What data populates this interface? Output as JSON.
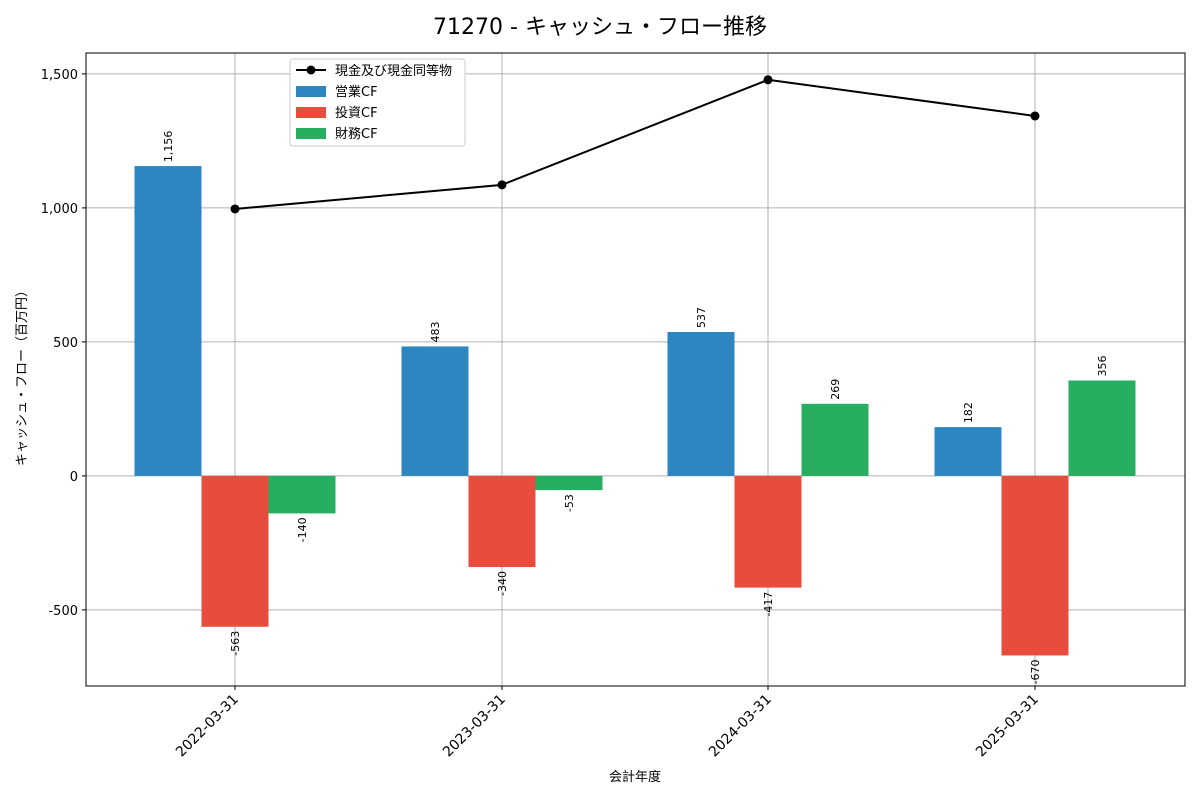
{
  "chart_data": {
    "type": "bar",
    "title": "71270 - キャッシュ・フロー推移",
    "xlabel": "会計年度",
    "ylabel": "キャッシュ・フロー（百万円）",
    "categories": [
      "2022-03-31",
      "2023-03-31",
      "2024-03-31",
      "2025-03-31"
    ],
    "series": [
      {
        "name": "営業CF",
        "color": "#2e86c1",
        "values": [
          1156,
          483,
          537,
          182
        ],
        "labels": [
          "1,156",
          "483",
          "537",
          "182"
        ]
      },
      {
        "name": "投資CF",
        "color": "#e74c3c",
        "values": [
          -563,
          -340,
          -417,
          -670
        ],
        "labels": [
          "-563",
          "-340",
          "-417",
          "-670"
        ]
      },
      {
        "name": "財務CF",
        "color": "#27ae60",
        "values": [
          -140,
          -53,
          269,
          356
        ],
        "labels": [
          "-140",
          "-53",
          "269",
          "356"
        ]
      }
    ],
    "line": {
      "name": "現金及び現金同等物",
      "color": "#000000",
      "values": [
        996,
        1086,
        1478,
        1343
      ]
    },
    "yticks": [
      -500,
      0,
      500,
      1000,
      1500
    ],
    "ytick_labels": [
      "-500",
      "0",
      "500",
      "1,000",
      "1,500"
    ],
    "ylim": [
      -784,
      1578
    ],
    "grid": true,
    "legend": "top-left"
  }
}
